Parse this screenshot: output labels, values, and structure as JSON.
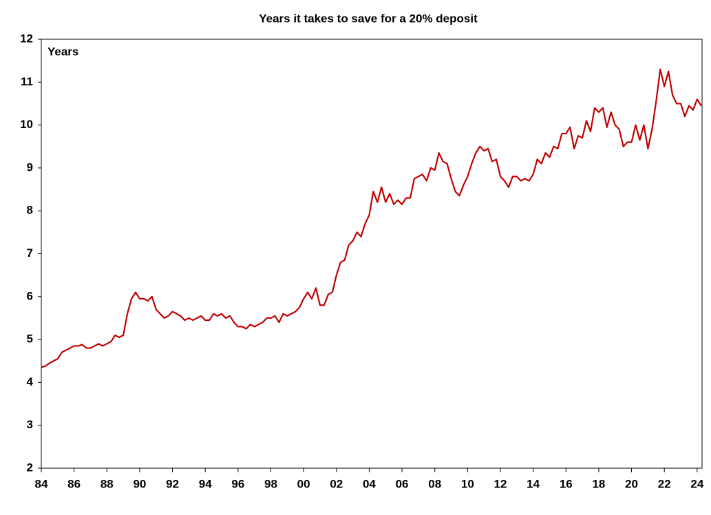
{
  "chart_data": {
    "type": "line",
    "title": "Years it takes to save for a 20% deposit",
    "y_label": "Years",
    "color": "#c00000",
    "x": [
      1984,
      1984.25,
      1984.5,
      1984.75,
      1985,
      1985.25,
      1985.5,
      1985.75,
      1986,
      1986.25,
      1986.5,
      1986.75,
      1987,
      1987.25,
      1987.5,
      1987.75,
      1988,
      1988.25,
      1988.5,
      1988.75,
      1989,
      1989.25,
      1989.5,
      1989.75,
      1990,
      1990.25,
      1990.5,
      1990.75,
      1991,
      1991.25,
      1991.5,
      1991.75,
      1992,
      1992.25,
      1992.5,
      1992.75,
      1993,
      1993.25,
      1993.5,
      1993.75,
      1994,
      1994.25,
      1994.5,
      1994.75,
      1995,
      1995.25,
      1995.5,
      1995.75,
      1996,
      1996.25,
      1996.5,
      1996.75,
      1997,
      1997.25,
      1997.5,
      1997.75,
      1998,
      1998.25,
      1998.5,
      1998.75,
      1999,
      1999.25,
      1999.5,
      1999.75,
      2000,
      2000.25,
      2000.5,
      2000.75,
      2001,
      2001.25,
      2001.5,
      2001.75,
      2002,
      2002.25,
      2002.5,
      2002.75,
      2003,
      2003.25,
      2003.5,
      2003.75,
      2004,
      2004.25,
      2004.5,
      2004.75,
      2005,
      2005.25,
      2005.5,
      2005.75,
      2006,
      2006.25,
      2006.5,
      2006.75,
      2007,
      2007.25,
      2007.5,
      2007.75,
      2008,
      2008.25,
      2008.5,
      2008.75,
      2009,
      2009.25,
      2009.5,
      2009.75,
      2010,
      2010.25,
      2010.5,
      2010.75,
      2011,
      2011.25,
      2011.5,
      2011.75,
      2012,
      2012.25,
      2012.5,
      2012.75,
      2013,
      2013.25,
      2013.5,
      2013.75,
      2014,
      2014.25,
      2014.5,
      2014.75,
      2015,
      2015.25,
      2015.5,
      2015.75,
      2016,
      2016.25,
      2016.5,
      2016.75,
      2017,
      2017.25,
      2017.5,
      2017.75,
      2018,
      2018.25,
      2018.5,
      2018.75,
      2019,
      2019.25,
      2019.5,
      2019.75,
      2020,
      2020.25,
      2020.5,
      2020.75,
      2021,
      2021.25,
      2021.5,
      2021.75,
      2022,
      2022.25,
      2022.5,
      2022.75,
      2023,
      2023.25,
      2023.5,
      2023.75,
      2024,
      2024.25
    ],
    "values": [
      4.35,
      4.38,
      4.45,
      4.5,
      4.55,
      4.7,
      4.75,
      4.8,
      4.85,
      4.85,
      4.88,
      4.8,
      4.8,
      4.85,
      4.9,
      4.85,
      4.9,
      4.95,
      5.1,
      5.05,
      5.1,
      5.6,
      5.95,
      6.1,
      5.95,
      5.95,
      5.9,
      6.0,
      5.7,
      5.6,
      5.5,
      5.55,
      5.65,
      5.6,
      5.55,
      5.45,
      5.5,
      5.45,
      5.5,
      5.55,
      5.45,
      5.45,
      5.6,
      5.55,
      5.6,
      5.5,
      5.55,
      5.4,
      5.3,
      5.3,
      5.25,
      5.35,
      5.3,
      5.35,
      5.4,
      5.5,
      5.5,
      5.55,
      5.4,
      5.6,
      5.55,
      5.6,
      5.65,
      5.75,
      5.95,
      6.1,
      5.95,
      6.2,
      5.8,
      5.8,
      6.05,
      6.1,
      6.5,
      6.8,
      6.85,
      7.2,
      7.3,
      7.5,
      7.4,
      7.7,
      7.9,
      8.45,
      8.2,
      8.55,
      8.2,
      8.4,
      8.15,
      8.25,
      8.15,
      8.3,
      8.3,
      8.75,
      8.8,
      8.85,
      8.7,
      9.0,
      8.95,
      9.35,
      9.15,
      9.1,
      8.75,
      8.45,
      8.35,
      8.6,
      8.8,
      9.1,
      9.35,
      9.5,
      9.4,
      9.45,
      9.15,
      9.2,
      8.8,
      8.7,
      8.55,
      8.8,
      8.8,
      8.7,
      8.75,
      8.7,
      8.85,
      9.2,
      9.1,
      9.35,
      9.25,
      9.5,
      9.45,
      9.8,
      9.8,
      9.95,
      9.45,
      9.75,
      9.7,
      10.1,
      9.85,
      10.4,
      10.3,
      10.4,
      9.95,
      10.3,
      10.0,
      9.9,
      9.5,
      9.6,
      9.6,
      10.0,
      9.65,
      10.0,
      9.45,
      9.9,
      10.55,
      11.3,
      10.9,
      11.25,
      10.7,
      10.5,
      10.5,
      10.2,
      10.45,
      10.35,
      10.6,
      10.45
    ],
    "xlim": [
      1984,
      2024.3
    ],
    "xticks": [
      {
        "value": 1984,
        "label": "84"
      },
      {
        "value": 1986,
        "label": "86"
      },
      {
        "value": 1988,
        "label": "88"
      },
      {
        "value": 1990,
        "label": "90"
      },
      {
        "value": 1992,
        "label": "92"
      },
      {
        "value": 1994,
        "label": "94"
      },
      {
        "value": 1996,
        "label": "96"
      },
      {
        "value": 1998,
        "label": "98"
      },
      {
        "value": 2000,
        "label": "00"
      },
      {
        "value": 2002,
        "label": "02"
      },
      {
        "value": 2004,
        "label": "04"
      },
      {
        "value": 2006,
        "label": "06"
      },
      {
        "value": 2008,
        "label": "08"
      },
      {
        "value": 2010,
        "label": "10"
      },
      {
        "value": 2012,
        "label": "12"
      },
      {
        "value": 2014,
        "label": "14"
      },
      {
        "value": 2016,
        "label": "16"
      },
      {
        "value": 2018,
        "label": "18"
      },
      {
        "value": 2020,
        "label": "20"
      },
      {
        "value": 2022,
        "label": "22"
      },
      {
        "value": 2024,
        "label": "24"
      }
    ],
    "ylim": [
      2,
      12
    ],
    "yticks": [
      2,
      3,
      4,
      5,
      6,
      7,
      8,
      9,
      10,
      11,
      12
    ]
  }
}
